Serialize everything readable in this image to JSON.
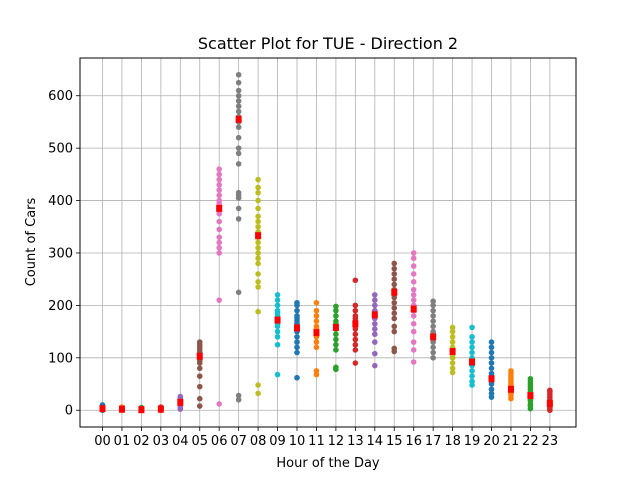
{
  "chart_data": {
    "type": "scatter",
    "title": "Scatter Plot for TUE - Direction 2",
    "xlabel": "Hour of the Day",
    "ylabel": "Count of Cars",
    "categories": [
      "00",
      "01",
      "02",
      "03",
      "04",
      "05",
      "06",
      "07",
      "08",
      "09",
      "10",
      "11",
      "12",
      "13",
      "14",
      "15",
      "16",
      "17",
      "18",
      "19",
      "20",
      "21",
      "22",
      "23"
    ],
    "yticks": [
      0,
      100,
      200,
      300,
      400,
      500,
      600
    ],
    "ylim": [
      -32,
      672
    ],
    "grid": true,
    "colors": [
      "#1f77b4",
      "#ff7f0e",
      "#2ca02c",
      "#d62728",
      "#9467bd",
      "#8c564b",
      "#e377c2",
      "#7f7f7f",
      "#bcbd22",
      "#17becf"
    ],
    "median_color": "#ff0000",
    "series": [
      {
        "hour": "00",
        "values": [
          0,
          2,
          3,
          4,
          5,
          6,
          7,
          8,
          10
        ]
      },
      {
        "hour": "01",
        "values": [
          0,
          1,
          2,
          3,
          4,
          5,
          6
        ]
      },
      {
        "hour": "02",
        "values": [
          0,
          1,
          2,
          3,
          4,
          5
        ]
      },
      {
        "hour": "03",
        "values": [
          0,
          1,
          2,
          3,
          4,
          5,
          6
        ]
      },
      {
        "hour": "04",
        "values": [
          2,
          6,
          10,
          12,
          14,
          16,
          18,
          20,
          22,
          24,
          26
        ]
      },
      {
        "hour": "05",
        "values": [
          8,
          22,
          45,
          65,
          80,
          90,
          95,
          100,
          103,
          106,
          110,
          115,
          120,
          125,
          130
        ]
      },
      {
        "hour": "06",
        "values": [
          12,
          210,
          300,
          310,
          320,
          330,
          345,
          360,
          375,
          385,
          390,
          395,
          400,
          410,
          420,
          430,
          440,
          450,
          460
        ]
      },
      {
        "hour": "07",
        "values": [
          20,
          28,
          225,
          365,
          385,
          405,
          410,
          415,
          470,
          490,
          500,
          520,
          540,
          550,
          555,
          560,
          570,
          580,
          590,
          600,
          610,
          625,
          640
        ]
      },
      {
        "hour": "08",
        "values": [
          32,
          48,
          188,
          235,
          245,
          260,
          280,
          290,
          300,
          310,
          320,
          330,
          335,
          340,
          350,
          360,
          370,
          385,
          400,
          415,
          425,
          440
        ]
      },
      {
        "hour": "09",
        "values": [
          68,
          125,
          140,
          150,
          160,
          165,
          170,
          175,
          180,
          185,
          190,
          200,
          210,
          220
        ]
      },
      {
        "hour": "10",
        "values": [
          62,
          110,
          120,
          130,
          140,
          150,
          155,
          160,
          165,
          170,
          175,
          180,
          190,
          200,
          205
        ]
      },
      {
        "hour": "11",
        "values": [
          68,
          75,
          120,
          130,
          140,
          145,
          150,
          155,
          160,
          170,
          180,
          190,
          205
        ]
      },
      {
        "hour": "12",
        "values": [
          78,
          82,
          115,
          125,
          135,
          145,
          155,
          160,
          165,
          170,
          180,
          190,
          198
        ]
      },
      {
        "hour": "13",
        "values": [
          90,
          115,
          125,
          135,
          145,
          155,
          160,
          165,
          170,
          175,
          180,
          190,
          200,
          248
        ]
      },
      {
        "hour": "14",
        "values": [
          85,
          108,
          130,
          145,
          155,
          165,
          175,
          180,
          185,
          190,
          200,
          210,
          220
        ]
      },
      {
        "hour": "15",
        "values": [
          112,
          118,
          150,
          160,
          175,
          185,
          195,
          205,
          215,
          225,
          230,
          240,
          250,
          260,
          270,
          280
        ]
      },
      {
        "hour": "16",
        "values": [
          92,
          115,
          130,
          150,
          165,
          180,
          190,
          195,
          200,
          210,
          220,
          230,
          245,
          260,
          275,
          290,
          300
        ]
      },
      {
        "hour": "17",
        "values": [
          100,
          110,
          120,
          130,
          135,
          140,
          145,
          150,
          160,
          170,
          180,
          190,
          200,
          208
        ]
      },
      {
        "hour": "18",
        "values": [
          72,
          80,
          90,
          100,
          105,
          110,
          115,
          120,
          130,
          140,
          150,
          158
        ]
      },
      {
        "hour": "19",
        "values": [
          48,
          55,
          65,
          75,
          85,
          90,
          95,
          100,
          110,
          120,
          130,
          140,
          158
        ]
      },
      {
        "hour": "20",
        "values": [
          25,
          32,
          40,
          50,
          55,
          60,
          65,
          70,
          80,
          90,
          100,
          110,
          120,
          130
        ]
      },
      {
        "hour": "21",
        "values": [
          22,
          28,
          32,
          38,
          42,
          45,
          50,
          55,
          60,
          65,
          70,
          75
        ]
      },
      {
        "hour": "22",
        "values": [
          3,
          8,
          12,
          18,
          22,
          26,
          30,
          35,
          40,
          45,
          50,
          55,
          60
        ]
      },
      {
        "hour": "23",
        "values": [
          0,
          2,
          5,
          8,
          10,
          12,
          15,
          18,
          20,
          25,
          30,
          35,
          38
        ]
      }
    ],
    "medians": [
      {
        "hour": "00",
        "value": 3
      },
      {
        "hour": "01",
        "value": 2
      },
      {
        "hour": "02",
        "value": 1
      },
      {
        "hour": "03",
        "value": 2
      },
      {
        "hour": "04",
        "value": 15
      },
      {
        "hour": "05",
        "value": 103
      },
      {
        "hour": "06",
        "value": 385
      },
      {
        "hour": "07",
        "value": 555
      },
      {
        "hour": "08",
        "value": 333
      },
      {
        "hour": "09",
        "value": 172
      },
      {
        "hour": "10",
        "value": 157
      },
      {
        "hour": "11",
        "value": 148
      },
      {
        "hour": "12",
        "value": 158
      },
      {
        "hour": "13",
        "value": 165
      },
      {
        "hour": "14",
        "value": 182
      },
      {
        "hour": "15",
        "value": 225
      },
      {
        "hour": "16",
        "value": 193
      },
      {
        "hour": "17",
        "value": 140
      },
      {
        "hour": "18",
        "value": 112
      },
      {
        "hour": "19",
        "value": 92
      },
      {
        "hour": "20",
        "value": 60
      },
      {
        "hour": "21",
        "value": 40
      },
      {
        "hour": "22",
        "value": 28
      },
      {
        "hour": "23",
        "value": 13
      }
    ]
  }
}
